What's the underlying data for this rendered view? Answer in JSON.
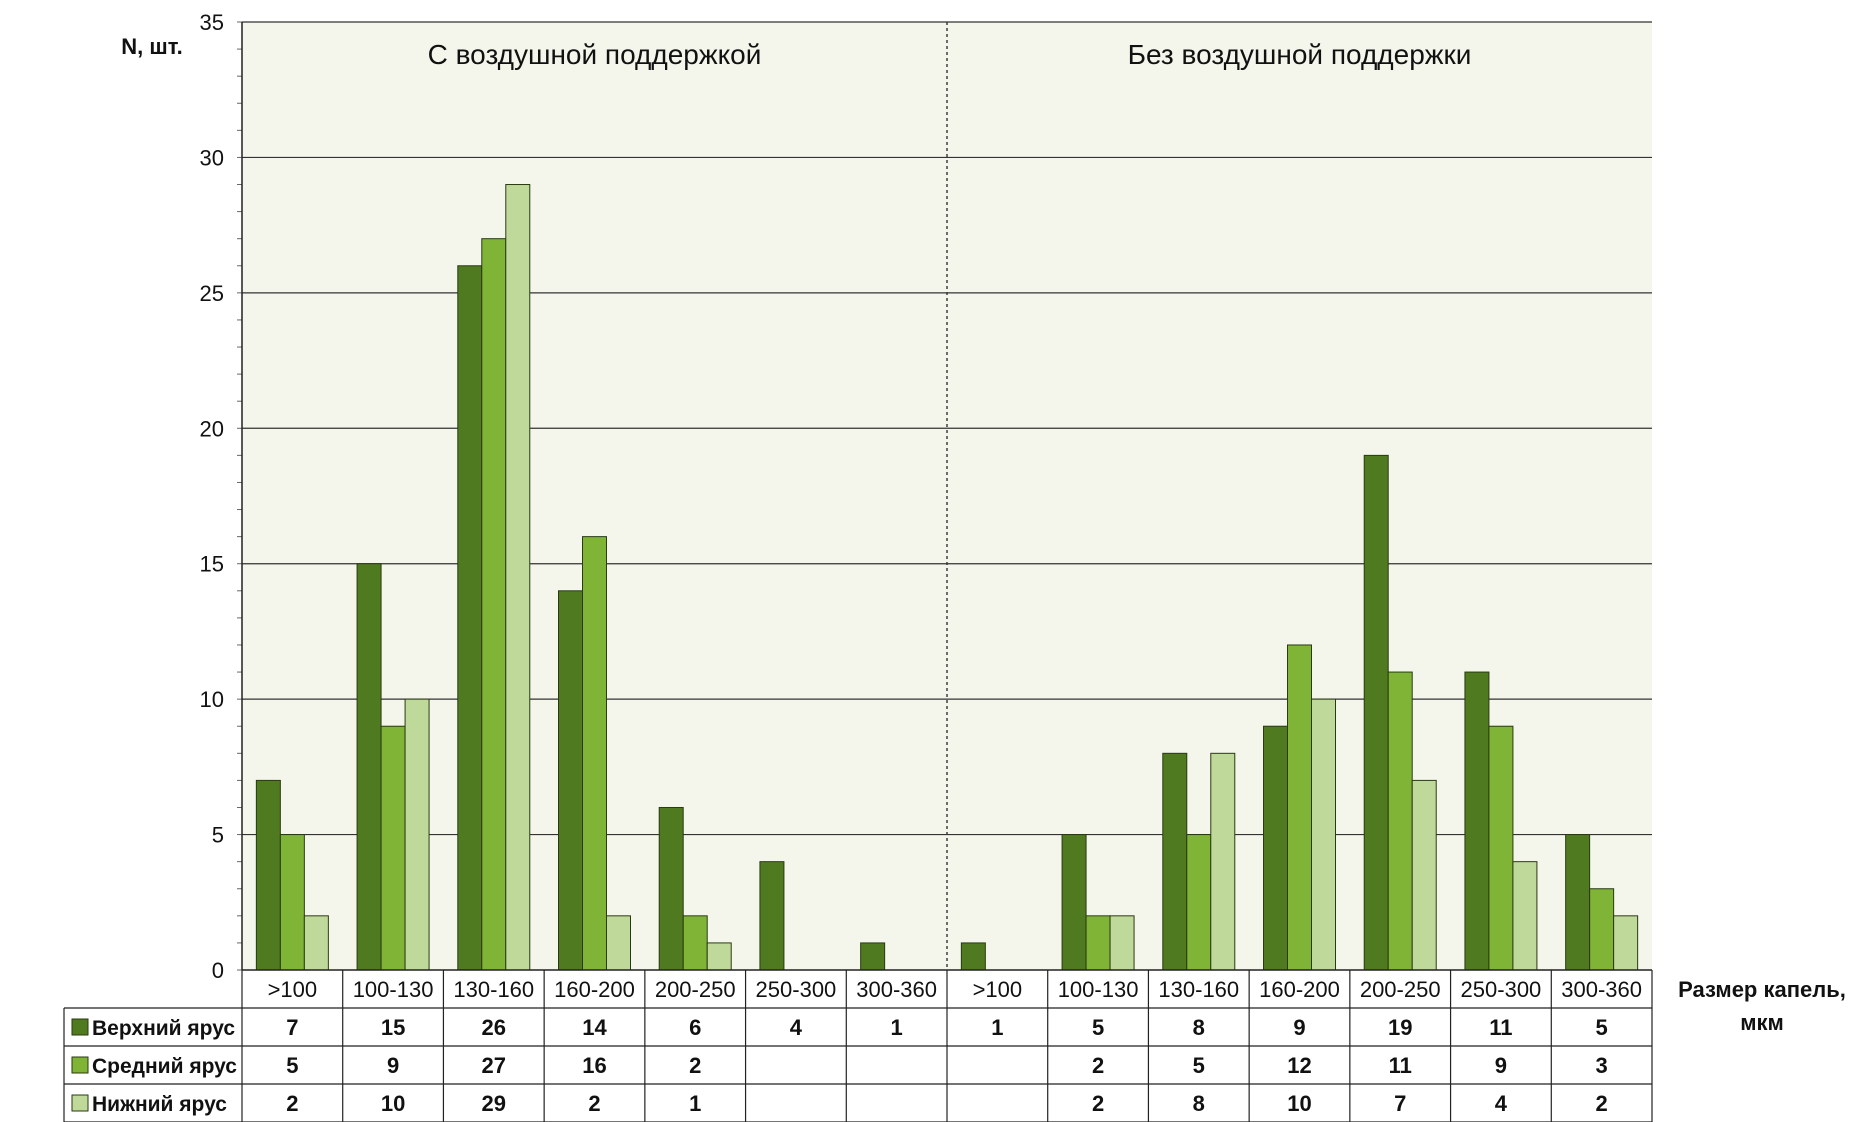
{
  "chart_data": {
    "type": "bar",
    "ylabel": "N, шт.",
    "xlabel_line1": "Размер капель,",
    "xlabel_line2": "мкм",
    "ylim": [
      0,
      35
    ],
    "yticks": [
      0,
      5,
      10,
      15,
      20,
      25,
      30,
      35
    ],
    "grid": true,
    "legend_placement": "bottom-table",
    "groups": [
      {
        "title": "С воздушной поддержкой"
      },
      {
        "title": "Без воздушной поддержки"
      }
    ],
    "categories": [
      ">100",
      "100-130",
      "130-160",
      "160-200",
      "200-250",
      "250-300",
      "300-360",
      ">100",
      "100-130",
      "130-160",
      "160-200",
      "200-250",
      "250-300",
      "300-360"
    ],
    "series": [
      {
        "name": "Верхний ярус",
        "color": "#4f7a1f",
        "values": [
          7,
          15,
          26,
          14,
          6,
          4,
          1,
          1,
          5,
          8,
          9,
          19,
          11,
          5
        ]
      },
      {
        "name": "Средний ярус",
        "color": "#80b437",
        "values": [
          5,
          9,
          27,
          16,
          2,
          null,
          null,
          null,
          2,
          5,
          12,
          11,
          9,
          3
        ]
      },
      {
        "name": "Нижний ярус",
        "color": "#bfd99a",
        "values": [
          2,
          10,
          29,
          2,
          1,
          null,
          null,
          null,
          2,
          8,
          10,
          7,
          4,
          2
        ]
      }
    ],
    "colors": {
      "plot_background": "#f4f6ec",
      "grid": "#333333",
      "border": "#222222"
    }
  }
}
